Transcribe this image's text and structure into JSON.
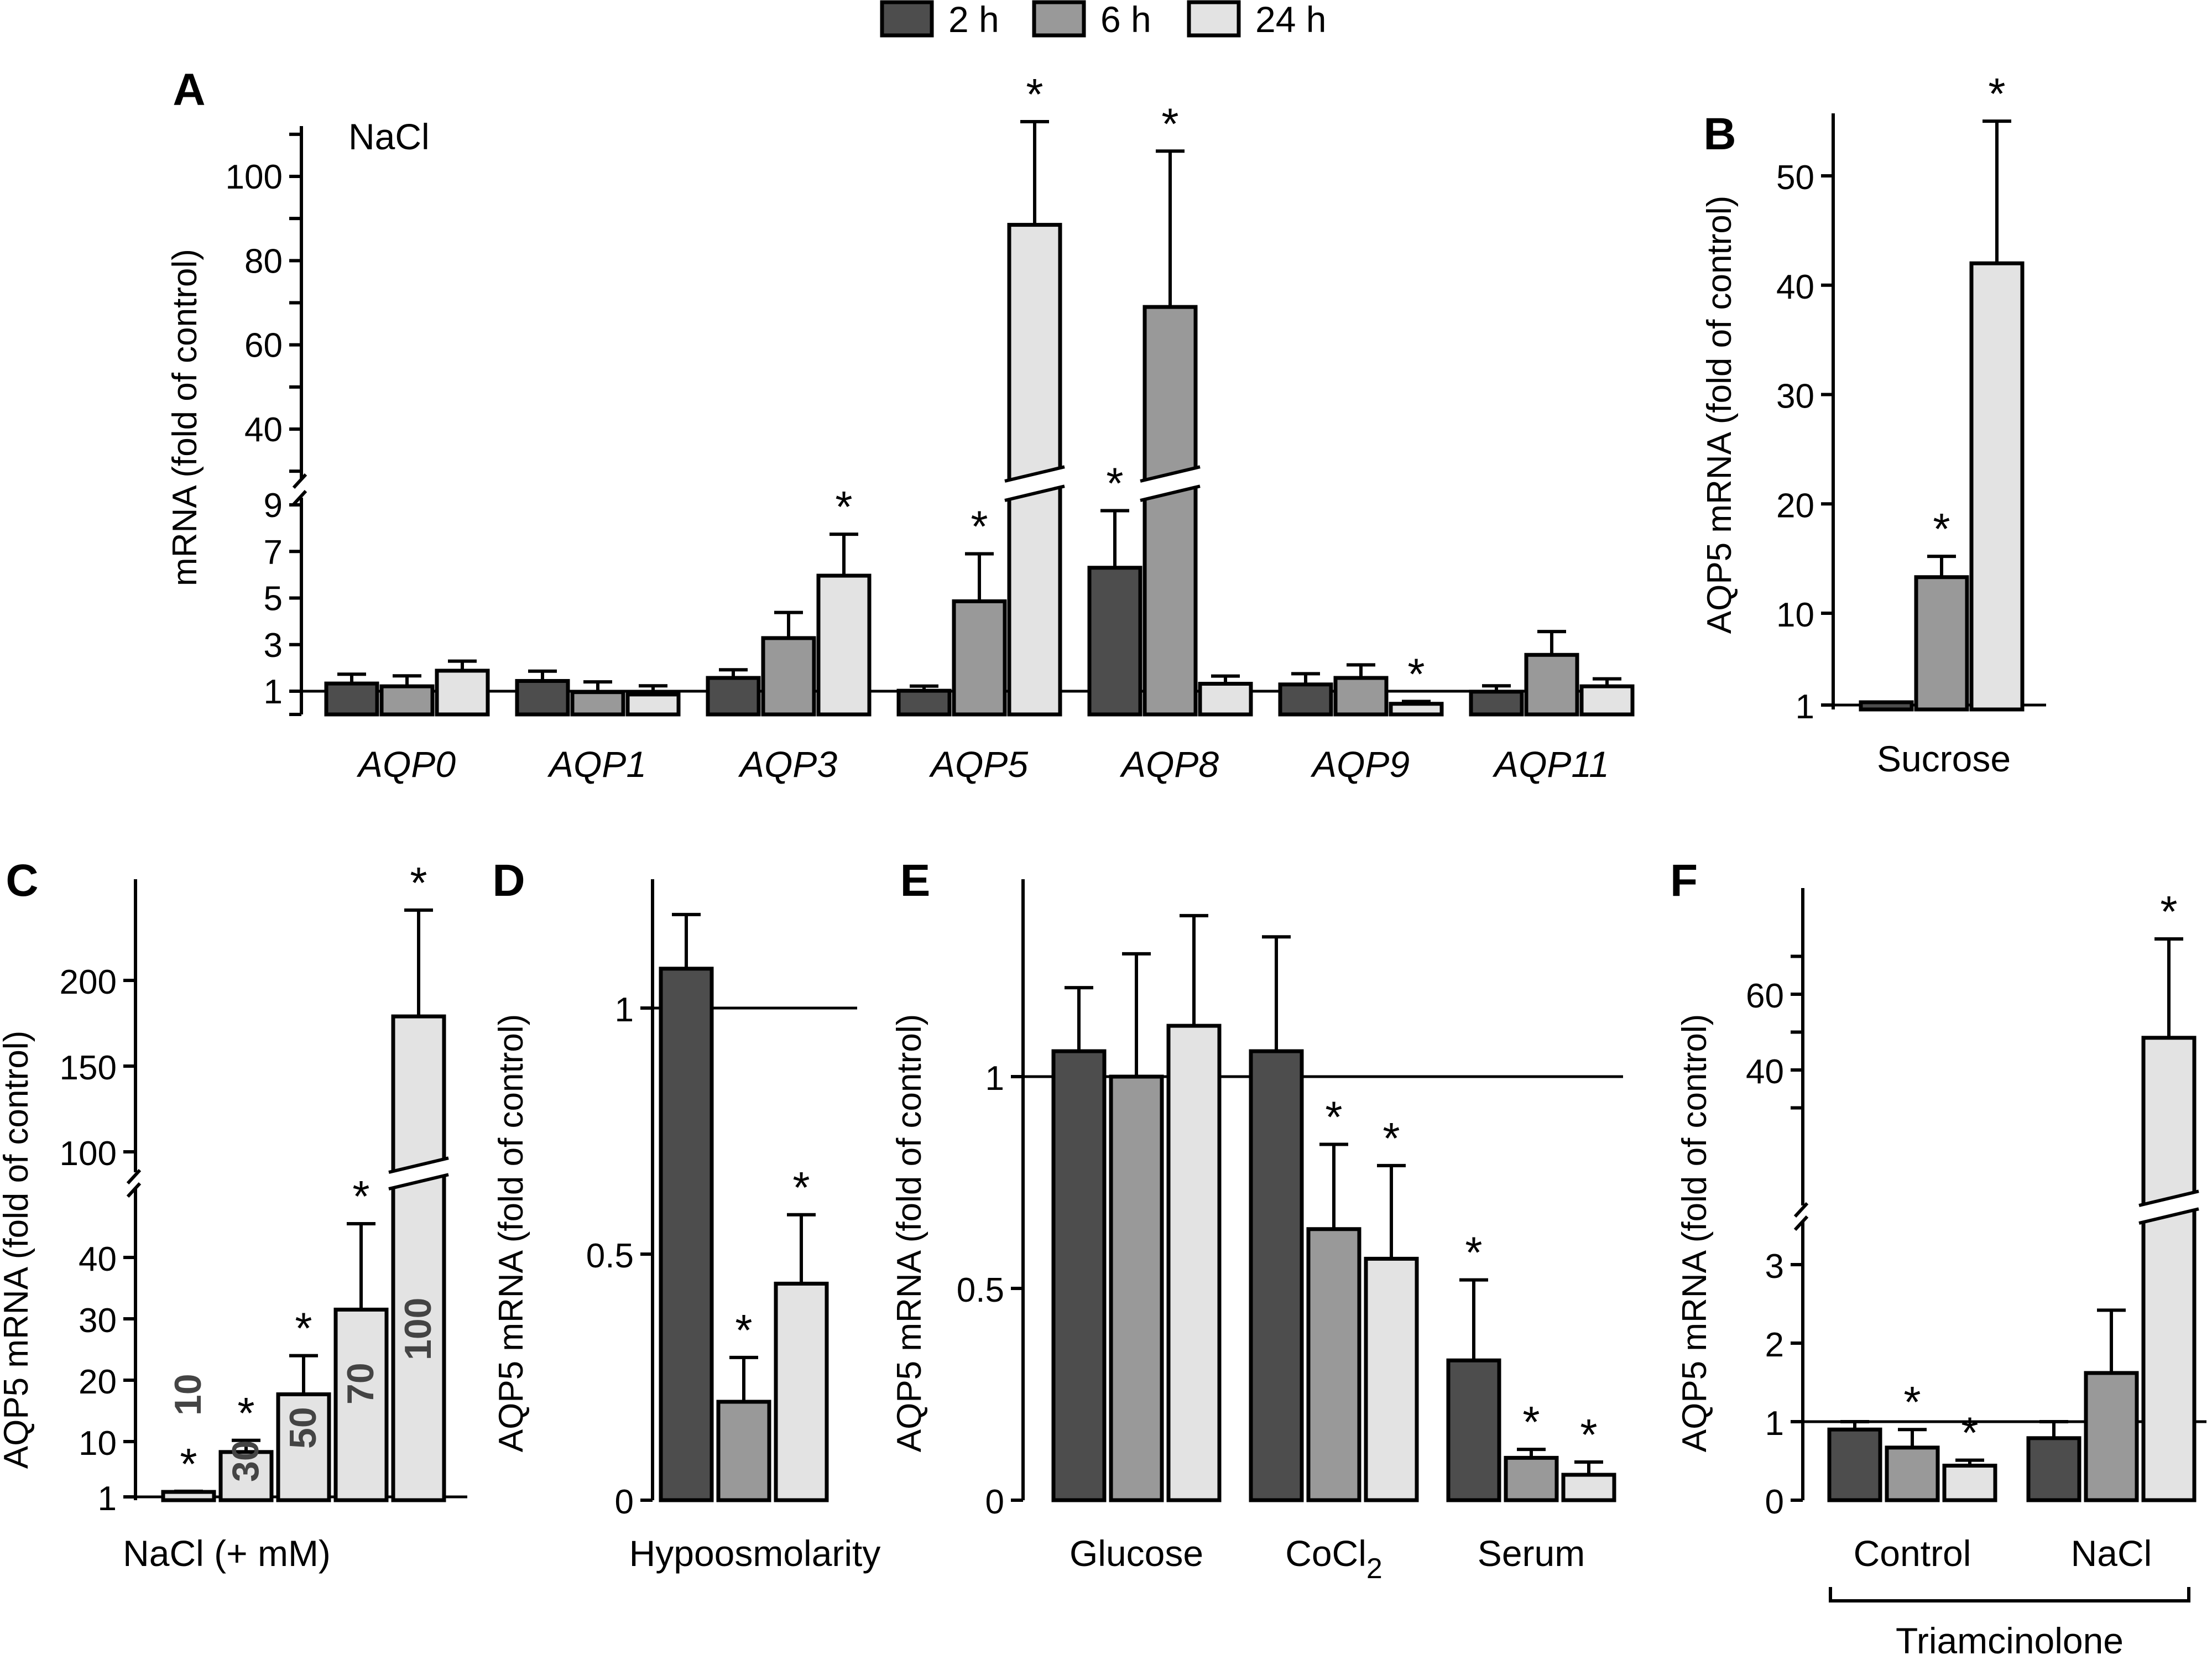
{
  "legend": {
    "items": [
      {
        "label": "2 h",
        "color": "#4d4d4d"
      },
      {
        "label": "6 h",
        "color": "#999999"
      },
      {
        "label": "24 h",
        "color": "#e3e3e3"
      }
    ]
  },
  "chart_data": [
    {
      "panel": "A",
      "type": "bar",
      "annotation": "NaCl",
      "ylabel": "mRNA (fold of control)",
      "yaxis_broken": true,
      "ylim_lower": [
        0,
        9
      ],
      "ylim_upper": [
        30,
        110
      ],
      "yticks_lower": [
        "1",
        "3",
        "5",
        "7",
        "9"
      ],
      "yticks_upper": [
        "40",
        "60",
        "80",
        "100"
      ],
      "reference_line": 1,
      "categories": [
        "AQP0",
        "AQP1",
        "AQP3",
        "AQP5",
        "AQP8",
        "AQP9",
        "AQP11"
      ],
      "series": [
        {
          "name": "2 h",
          "values": [
            1.33,
            1.44,
            1.57,
            1.02,
            6.3,
            1.29,
            0.98
          ],
          "error_upper": [
            1.73,
            1.86,
            1.92,
            1.22,
            8.75,
            1.75,
            1.23
          ],
          "significant": [
            false,
            false,
            false,
            false,
            true,
            false,
            false
          ]
        },
        {
          "name": "6 h",
          "values": [
            1.21,
            0.96,
            3.28,
            4.86,
            69,
            1.57,
            2.56
          ],
          "error_upper": [
            1.66,
            1.4,
            4.38,
            6.9,
            106,
            2.13,
            3.56
          ],
          "significant": [
            false,
            false,
            false,
            true,
            true,
            false,
            false
          ]
        },
        {
          "name": "24 h",
          "values": [
            1.88,
            0.86,
            5.96,
            88.5,
            1.32,
            0.46,
            1.21
          ],
          "error_upper": [
            2.29,
            1.23,
            7.74,
            113,
            1.65,
            0.56,
            1.53
          ],
          "significant": [
            false,
            false,
            true,
            true,
            false,
            true,
            false
          ]
        }
      ]
    },
    {
      "panel": "B",
      "type": "bar",
      "xlabel": "Sucrose",
      "ylabel": "AQP5 mRNA (fold of control)",
      "ylim": [
        1,
        56
      ],
      "yticks": [
        "1",
        "10",
        "20",
        "30",
        "40",
        "50"
      ],
      "reference_line": 1,
      "categories": [
        "Sucrose"
      ],
      "series": [
        {
          "name": "2 h",
          "values": [
            0.9
          ],
          "error_upper": [
            0.9
          ],
          "significant": [
            false
          ]
        },
        {
          "name": "6 h",
          "values": [
            13.3
          ],
          "error_upper": [
            15.2
          ],
          "significant": [
            true
          ]
        },
        {
          "name": "24 h",
          "values": [
            42
          ],
          "error_upper": [
            55
          ],
          "significant": [
            true
          ]
        }
      ]
    },
    {
      "panel": "C",
      "type": "bar",
      "xlabel": "NaCl (+ mM)",
      "ylabel": "AQP5 mRNA (fold of control)",
      "yaxis_broken": true,
      "ylim_lower": [
        1,
        46
      ],
      "ylim_upper": [
        90,
        245
      ],
      "yticks_lower": [
        "1",
        "10",
        "20",
        "30",
        "40"
      ],
      "yticks_upper": [
        "100",
        "150",
        "200"
      ],
      "reference_line": 1,
      "series_color": "#e3e3e3",
      "categories": [
        "10",
        "30",
        "50",
        "70",
        "100"
      ],
      "values": [
        1.8,
        8.3,
        17.7,
        31.5,
        179
      ],
      "error_upper": [
        1.9,
        10.2,
        24,
        45.5,
        241
      ],
      "significant": [
        true,
        true,
        true,
        true,
        true
      ]
    },
    {
      "panel": "D",
      "type": "bar",
      "xlabel": "Hypoosmolarity",
      "ylabel": "AQP5 mRNA (fold of control)",
      "ylim": [
        0,
        1.22
      ],
      "yticks": [
        "0",
        "0.5",
        "1"
      ],
      "reference_line": 1,
      "categories": [
        "Hypoosmolarity"
      ],
      "series": [
        {
          "name": "2 h",
          "values": [
            1.08
          ],
          "error_upper": [
            1.19
          ],
          "significant": [
            false
          ]
        },
        {
          "name": "6 h",
          "values": [
            0.2
          ],
          "error_upper": [
            0.29
          ],
          "significant": [
            true
          ]
        },
        {
          "name": "24 h",
          "values": [
            0.44
          ],
          "error_upper": [
            0.58
          ],
          "significant": [
            true
          ]
        }
      ]
    },
    {
      "panel": "E",
      "type": "bar",
      "ylabel": "AQP5 mRNA (fold of control)",
      "ylim": [
        0,
        1.42
      ],
      "yticks": [
        "0",
        "0.5",
        "1"
      ],
      "reference_line": 1,
      "categories": [
        "Glucose",
        "CoCl",
        "Serum"
      ],
      "category_subscripts": [
        "",
        "2",
        ""
      ],
      "series": [
        {
          "name": "2 h",
          "values": [
            1.06,
            1.06,
            0.33
          ],
          "error_upper": [
            1.21,
            1.33,
            0.52
          ],
          "significant": [
            false,
            false,
            true
          ]
        },
        {
          "name": "6 h",
          "values": [
            1.0,
            0.64,
            0.1
          ],
          "error_upper": [
            1.29,
            0.84,
            0.12
          ],
          "significant": [
            false,
            true,
            true
          ]
        },
        {
          "name": "24 h",
          "values": [
            1.12,
            0.57,
            0.06
          ],
          "error_upper": [
            1.38,
            0.79,
            0.09
          ],
          "significant": [
            false,
            true,
            true
          ]
        }
      ]
    },
    {
      "panel": "F",
      "type": "bar",
      "xlabel": "Triamcinolone",
      "ylabel": "AQP5 mRNA (fold of control)",
      "yaxis_broken": true,
      "ylim_lower": [
        0,
        3.6
      ],
      "ylim_upper": [
        30,
        76
      ],
      "yticks_lower": [
        "0",
        "1",
        "2",
        "3"
      ],
      "yticks_upper": [
        "40",
        "60"
      ],
      "reference_line": 1,
      "categories": [
        "Control",
        "NaCl"
      ],
      "series": [
        {
          "name": "2 h",
          "values": [
            0.9,
            0.79
          ],
          "error_upper": [
            1.0,
            1.0
          ],
          "significant": [
            false,
            false
          ]
        },
        {
          "name": "6 h",
          "values": [
            0.67,
            1.62
          ],
          "error_upper": [
            0.9,
            2.42
          ],
          "significant": [
            true,
            false
          ]
        },
        {
          "name": "24 h",
          "values": [
            0.44,
            48.5
          ],
          "error_upper": [
            0.51,
            74.6
          ],
          "significant": [
            true,
            true
          ]
        }
      ]
    }
  ],
  "labels": {
    "panel_letters": [
      "A",
      "B",
      "C",
      "D",
      "E",
      "F"
    ],
    "star": "*"
  }
}
